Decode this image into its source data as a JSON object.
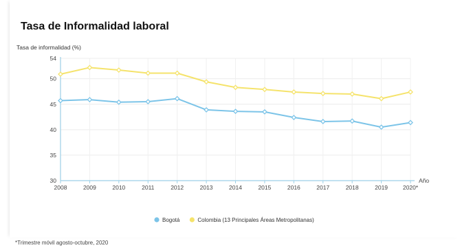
{
  "chart_data": {
    "type": "line",
    "title": "Tasa de Informalidad laboral",
    "ylabel": "Tasa de informalidad (%)",
    "xlabel": "Año",
    "x": [
      "2008",
      "2009",
      "2010",
      "2011",
      "2012",
      "2013",
      "2014",
      "2015",
      "2016",
      "2017",
      "2018",
      "2019",
      "2020*"
    ],
    "ylim": [
      30,
      54
    ],
    "yticks": [
      30,
      35,
      40,
      45,
      50,
      54
    ],
    "grid": true,
    "legend_position": "bottom",
    "series": [
      {
        "name": "Bogotá",
        "color": "#7cc4e8",
        "values": [
          45.7,
          45.9,
          45.4,
          45.5,
          46.1,
          43.9,
          43.6,
          43.5,
          42.4,
          41.6,
          41.7,
          40.5,
          41.4
        ]
      },
      {
        "name": "Colombia (13 Principales Áreas Metropolitanas)",
        "color": "#f5e36b",
        "values": [
          50.9,
          52.2,
          51.7,
          51.1,
          51.1,
          49.4,
          48.3,
          47.9,
          47.4,
          47.1,
          47.0,
          46.1,
          47.4
        ]
      }
    ],
    "footnote": "*Trimestre móvil agosto-octubre, 2020"
  }
}
